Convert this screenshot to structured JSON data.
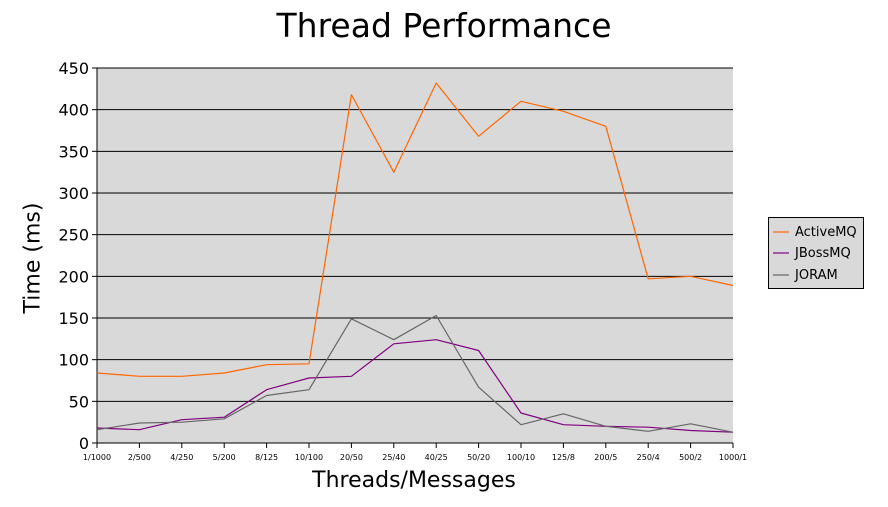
{
  "chart_data": {
    "type": "line",
    "title": "Thread Performance",
    "xlabel": "Threads/Messages",
    "ylabel": "Time (ms)",
    "ylim": [
      0,
      450
    ],
    "yticks": [
      "0",
      "50",
      "100",
      "150",
      "200",
      "250",
      "300",
      "350",
      "400",
      "450"
    ],
    "grid": true,
    "legend_position": "right",
    "categories": [
      "1/1000",
      "2/500",
      "4/250",
      "5/200",
      "8/125",
      "10/100",
      "20/50",
      "25/40",
      "40/25",
      "50/20",
      "100/10",
      "125/8",
      "200/5",
      "250/4",
      "500/2",
      "1000/1"
    ],
    "series": [
      {
        "name": "ActiveMQ",
        "color": "#ff6600",
        "values": [
          84,
          80,
          80,
          84,
          94,
          95,
          418,
          325,
          432,
          368,
          410,
          398,
          380,
          197,
          200,
          189
        ]
      },
      {
        "name": "JBossMQ",
        "color": "#800080",
        "values": [
          18,
          16,
          28,
          31,
          64,
          78,
          80,
          119,
          124,
          111,
          36,
          22,
          20,
          19,
          15,
          13
        ]
      },
      {
        "name": "JORAM",
        "color": "#666666",
        "values": [
          16,
          24,
          25,
          29,
          57,
          64,
          149,
          124,
          153,
          67,
          22,
          35,
          20,
          14,
          23,
          13
        ]
      }
    ]
  }
}
